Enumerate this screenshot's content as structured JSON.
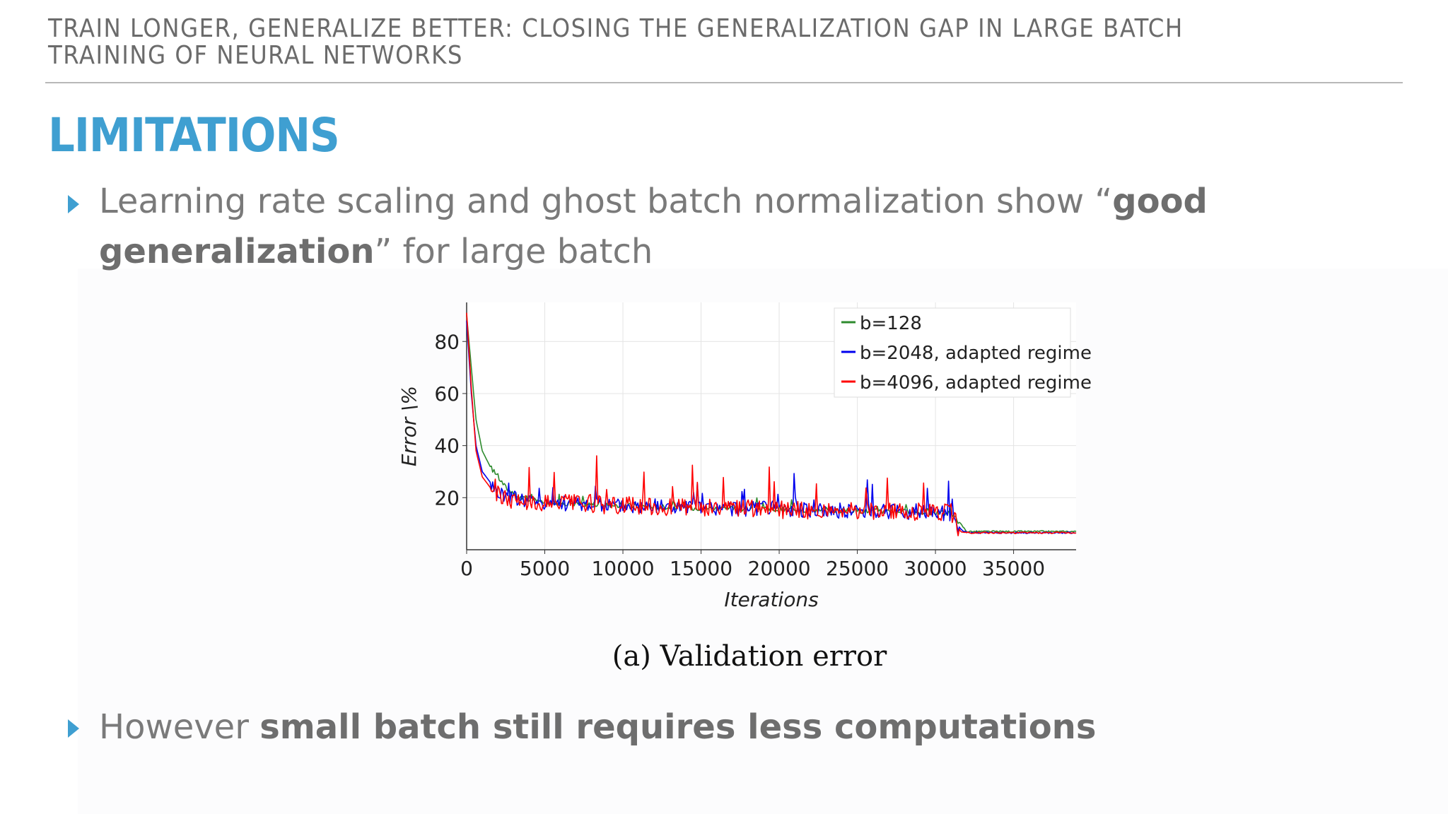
{
  "header": {
    "title_line1": "TRAIN LONGER, GENERALIZE BETTER: CLOSING THE GENERALIZATION GAP IN LARGE BATCH",
    "title_line2": "TRAINING OF NEURAL NETWORKS"
  },
  "slide_title": "LIMITATIONS",
  "bullets": [
    {
      "pre": "Learning rate scaling and ghost batch normalization show “",
      "bold1": "good",
      "bold2": "generalization",
      "post": "” for large batch"
    },
    {
      "pre": "However ",
      "bold": "small batch still requires less computations"
    }
  ],
  "figure_caption": "(a) Validation error",
  "colors": {
    "accent": "#3f9fd1",
    "header_text": "#6b6b6b",
    "bullet_text": "#7a7a7a",
    "series_b128": "#2e8b2e",
    "series_b2048": "#0000ee",
    "series_b4096": "#ff0000"
  },
  "icons": {
    "bullet_marker": "triangle-right-icon"
  },
  "chart_data": {
    "type": "line",
    "xlabel": "Iterations",
    "ylabel": "Error \\%",
    "xlim": [
      0,
      39000
    ],
    "ylim": [
      0,
      95
    ],
    "xticks": [
      0,
      5000,
      10000,
      15000,
      20000,
      25000,
      30000,
      35000
    ],
    "yticks": [
      20,
      40,
      60,
      80
    ],
    "grid": true,
    "legend_position": "top-right",
    "series": [
      {
        "name": "b=128",
        "color": "#2e8b2e",
        "x": [
          0,
          300,
          600,
          1000,
          1500,
          2000,
          2500,
          3000,
          4000,
          6000,
          8000,
          10000,
          15000,
          20000,
          25000,
          31000,
          31600,
          32000,
          35000,
          39000
        ],
        "values": [
          90,
          70,
          50,
          38,
          32,
          28,
          24,
          21,
          19,
          18,
          17.5,
          17,
          16,
          15.5,
          15,
          14,
          10,
          7,
          7,
          7
        ]
      },
      {
        "name": "b=2048, adapted regime",
        "color": "#0000ee",
        "x": [
          0,
          300,
          600,
          1000,
          1500,
          2000,
          3000,
          4000,
          6000,
          8000,
          10000,
          15000,
          20000,
          25000,
          31000,
          31600,
          32000,
          35000,
          39000
        ],
        "values": [
          88,
          60,
          40,
          30,
          26,
          22,
          20,
          19,
          18,
          17.5,
          17,
          16,
          15.5,
          15,
          14,
          8,
          6.5,
          6.5,
          6.5
        ]
      },
      {
        "name": "b=4096, adapted regime",
        "color": "#ff0000",
        "x": [
          0,
          300,
          600,
          1000,
          1500,
          2000,
          3000,
          4000,
          6000,
          8000,
          10000,
          15000,
          20000,
          25000,
          31000,
          31600,
          32000,
          35000,
          39000
        ],
        "values": [
          91,
          62,
          38,
          28,
          24,
          21,
          19,
          18.5,
          18,
          17.5,
          17,
          16,
          15.5,
          15,
          14.5,
          7,
          6.5,
          6.5,
          6.5
        ]
      }
    ]
  }
}
